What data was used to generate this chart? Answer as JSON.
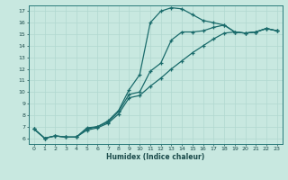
{
  "xlabel": "Humidex (Indice chaleur)",
  "xlim": [
    -0.5,
    23.5
  ],
  "ylim": [
    5.5,
    17.5
  ],
  "xticks": [
    0,
    1,
    2,
    3,
    4,
    5,
    6,
    7,
    8,
    9,
    10,
    11,
    12,
    13,
    14,
    15,
    16,
    17,
    18,
    19,
    20,
    21,
    22,
    23
  ],
  "yticks": [
    6,
    7,
    8,
    9,
    10,
    11,
    12,
    13,
    14,
    15,
    16,
    17
  ],
  "bg_color": "#c8e8e0",
  "line_color": "#1a6b6b",
  "grid_color": "#b0d8d0",
  "line1_x": [
    0,
    1,
    2,
    3,
    4,
    5,
    6,
    7,
    8,
    9,
    10,
    11,
    12,
    13,
    14,
    15,
    16,
    17,
    18,
    19,
    20,
    21,
    22,
    23
  ],
  "line1_y": [
    6.8,
    6.0,
    6.2,
    6.1,
    6.1,
    6.9,
    7.0,
    7.5,
    8.4,
    10.2,
    11.5,
    16.0,
    17.0,
    17.3,
    17.2,
    16.7,
    16.2,
    16.0,
    15.8,
    15.2,
    15.1,
    15.2,
    15.5,
    15.3
  ],
  "line2_x": [
    0,
    1,
    2,
    3,
    4,
    5,
    6,
    7,
    8,
    9,
    10,
    11,
    12,
    13,
    14,
    15,
    16,
    17,
    18,
    19,
    20,
    21,
    22,
    23
  ],
  "line2_y": [
    6.8,
    6.0,
    6.2,
    6.1,
    6.1,
    6.8,
    7.0,
    7.4,
    8.3,
    9.8,
    10.0,
    11.8,
    12.5,
    14.5,
    15.2,
    15.2,
    15.3,
    15.6,
    15.8,
    15.2,
    15.1,
    15.2,
    15.5,
    15.3
  ],
  "line3_x": [
    0,
    1,
    2,
    3,
    4,
    5,
    6,
    7,
    8,
    9,
    10,
    11,
    12,
    13,
    14,
    15,
    16,
    17,
    18,
    19,
    20,
    21,
    22,
    23
  ],
  "line3_y": [
    6.8,
    6.0,
    6.2,
    6.1,
    6.1,
    6.7,
    6.9,
    7.3,
    8.1,
    9.5,
    9.7,
    10.5,
    11.2,
    12.0,
    12.7,
    13.4,
    14.0,
    14.6,
    15.1,
    15.2,
    15.1,
    15.2,
    15.5,
    15.3
  ]
}
